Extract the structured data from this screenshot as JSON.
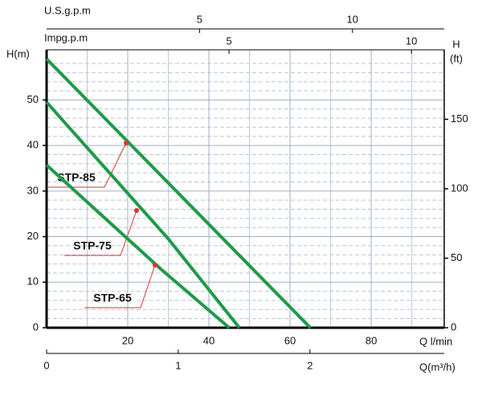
{
  "chart_data": {
    "type": "line",
    "ylabel": "H(m)",
    "y2label": "H",
    "y2unit": "(ft)",
    "xlabel": "Q l/min",
    "xlim": [
      0,
      98
    ],
    "xticks": [
      20,
      40,
      60,
      80
    ],
    "minor_xticks": [
      10,
      30,
      50,
      70,
      90
    ],
    "ylim": [
      0,
      61
    ],
    "yticks": [
      0,
      10,
      20,
      30,
      40,
      50
    ],
    "minor_yticks": [
      2,
      4,
      6,
      8,
      12,
      14,
      16,
      18,
      22,
      24,
      26,
      28,
      32,
      34,
      36,
      38,
      42,
      44,
      46,
      48,
      52,
      54,
      56,
      58
    ],
    "y2lim": [
      0,
      200
    ],
    "y2ticks": [
      0,
      50,
      100,
      150
    ],
    "grid": true,
    "top_axis_1": {
      "label": "U.S.g.p.m",
      "xlim": [
        0,
        13
      ],
      "xticks": [
        5,
        10
      ]
    },
    "top_axis_2": {
      "label": "Impg.p.m",
      "xlim": [
        0,
        10.9
      ],
      "xticks": [
        5,
        10
      ]
    },
    "bottom_axis_2": {
      "label": "Q(m³/h)",
      "xlim": [
        0,
        3.02
      ],
      "xticks": [
        0,
        1,
        2
      ]
    },
    "series": [
      {
        "name": "STP-85",
        "color": "#1f9a48",
        "x": [
          0,
          65
        ],
        "values": [
          59,
          0
        ]
      },
      {
        "name": "STP-75",
        "color": "#1f9a48",
        "x": [
          0,
          30,
          47.5
        ],
        "values": [
          49.5,
          19.5,
          0
        ]
      },
      {
        "name": "STP-65",
        "color": "#1f9a48",
        "x": [
          0,
          28,
          45
        ],
        "values": [
          35.7,
          13,
          0
        ]
      }
    ]
  }
}
